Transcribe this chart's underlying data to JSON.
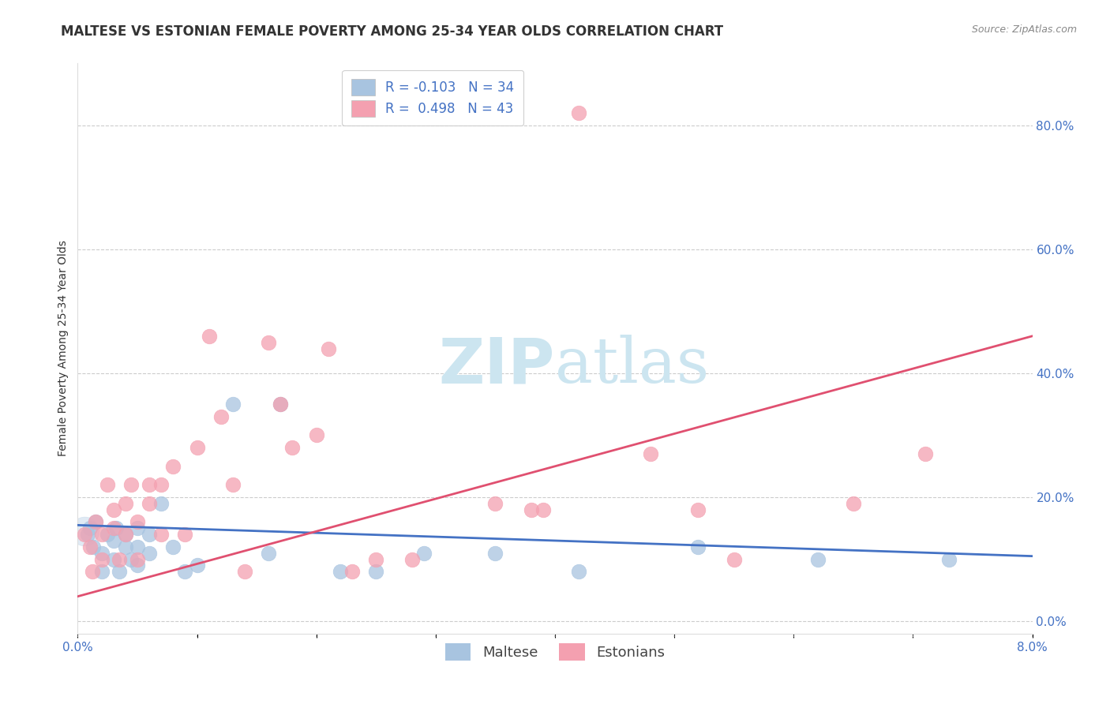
{
  "title": "MALTESE VS ESTONIAN FEMALE POVERTY AMONG 25-34 YEAR OLDS CORRELATION CHART",
  "source": "Source: ZipAtlas.com",
  "ylabel": "Female Poverty Among 25-34 Year Olds",
  "xlim": [
    0.0,
    0.08
  ],
  "ylim": [
    -0.02,
    0.9
  ],
  "right_yticks": [
    0.0,
    0.2,
    0.4,
    0.6,
    0.8
  ],
  "right_yticklabels": [
    "0.0%",
    "20.0%",
    "40.0%",
    "60.0%",
    "80.0%"
  ],
  "xticks": [
    0.0,
    0.01,
    0.02,
    0.03,
    0.04,
    0.05,
    0.06,
    0.07,
    0.08
  ],
  "xticklabels": [
    "0.0%",
    "",
    "",
    "",
    "",
    "",
    "",
    "",
    "8.0%"
  ],
  "maltese_R": -0.103,
  "maltese_N": 34,
  "estonian_R": 0.498,
  "estonian_N": 43,
  "maltese_color": "#a8c4e0",
  "estonian_color": "#f4a0b0",
  "maltese_line_color": "#4472c4",
  "estonian_line_color": "#e05070",
  "background_color": "#ffffff",
  "watermark_color": "#cce5f0",
  "grid_color": "#cccccc",
  "title_fontsize": 12,
  "axis_label_fontsize": 10,
  "tick_fontsize": 11,
  "legend_fontsize": 12,
  "maltese_x": [
    0.0008,
    0.001,
    0.0013,
    0.0015,
    0.002,
    0.002,
    0.0025,
    0.003,
    0.003,
    0.0032,
    0.0035,
    0.004,
    0.004,
    0.0045,
    0.005,
    0.005,
    0.005,
    0.006,
    0.006,
    0.007,
    0.008,
    0.009,
    0.01,
    0.013,
    0.016,
    0.017,
    0.022,
    0.025,
    0.029,
    0.035,
    0.042,
    0.052,
    0.062,
    0.073
  ],
  "maltese_y": [
    0.14,
    0.15,
    0.12,
    0.16,
    0.08,
    0.11,
    0.14,
    0.1,
    0.13,
    0.15,
    0.08,
    0.12,
    0.14,
    0.1,
    0.09,
    0.12,
    0.15,
    0.11,
    0.14,
    0.19,
    0.12,
    0.08,
    0.09,
    0.35,
    0.11,
    0.35,
    0.08,
    0.08,
    0.11,
    0.11,
    0.08,
    0.12,
    0.1,
    0.1
  ],
  "estonian_x": [
    0.0006,
    0.001,
    0.0012,
    0.0015,
    0.002,
    0.002,
    0.0025,
    0.003,
    0.003,
    0.0035,
    0.004,
    0.004,
    0.0045,
    0.005,
    0.005,
    0.006,
    0.006,
    0.007,
    0.007,
    0.008,
    0.009,
    0.01,
    0.011,
    0.012,
    0.013,
    0.014,
    0.016,
    0.017,
    0.018,
    0.02,
    0.021,
    0.023,
    0.025,
    0.028,
    0.035,
    0.038,
    0.039,
    0.042,
    0.048,
    0.052,
    0.055,
    0.065,
    0.071
  ],
  "estonian_y": [
    0.14,
    0.12,
    0.08,
    0.16,
    0.14,
    0.1,
    0.22,
    0.15,
    0.18,
    0.1,
    0.19,
    0.14,
    0.22,
    0.16,
    0.1,
    0.22,
    0.19,
    0.22,
    0.14,
    0.25,
    0.14,
    0.28,
    0.46,
    0.33,
    0.22,
    0.08,
    0.45,
    0.35,
    0.28,
    0.3,
    0.44,
    0.08,
    0.1,
    0.1,
    0.19,
    0.18,
    0.18,
    0.82,
    0.27,
    0.18,
    0.1,
    0.19,
    0.27
  ],
  "maltese_line_x": [
    0.0,
    0.08
  ],
  "maltese_line_y": [
    0.155,
    0.105
  ],
  "estonian_line_x": [
    0.0,
    0.08
  ],
  "estonian_line_y": [
    0.04,
    0.46
  ]
}
